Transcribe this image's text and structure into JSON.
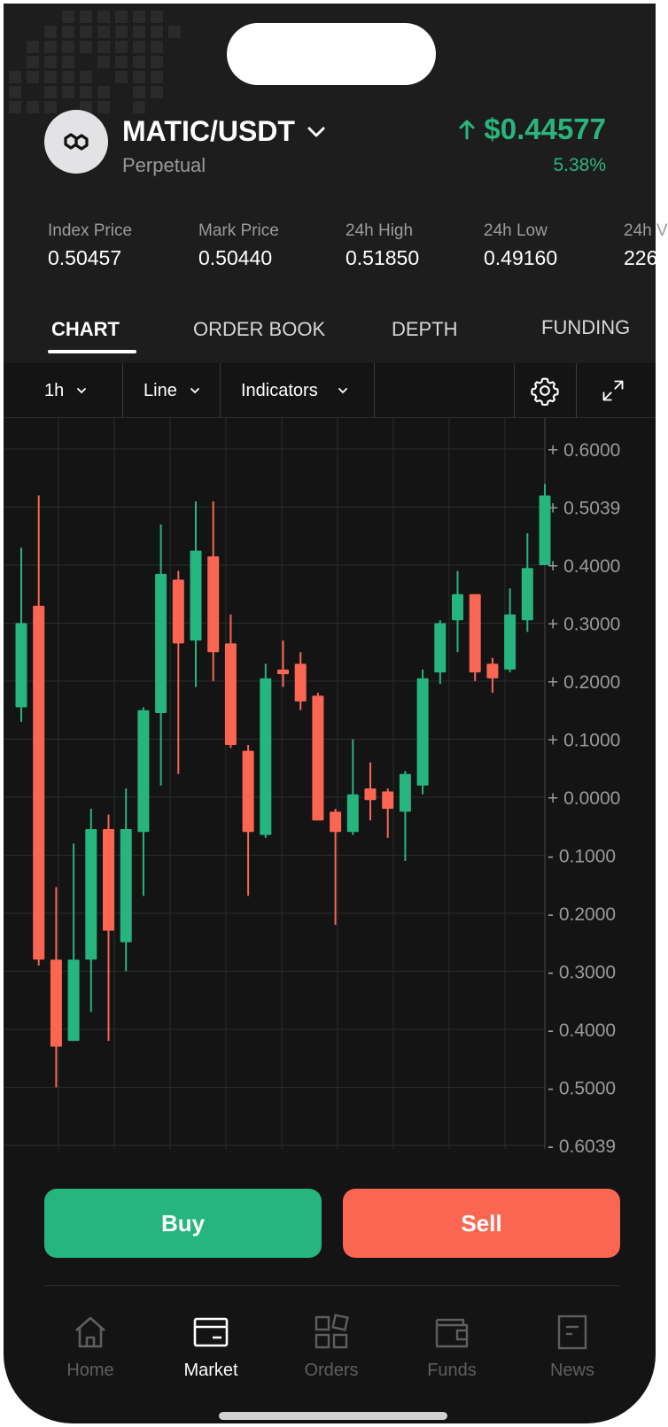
{
  "header": {
    "pair": "MATIC/USDT",
    "contract_type": "Perpetual",
    "price": "$0.44577",
    "change": "5.38%",
    "logo_icon": "polygon-logo-icon",
    "pair_dropdown_icon": "chevron-down-icon",
    "price_direction_icon": "arrow-up-icon"
  },
  "stats": [
    {
      "label": "Index Price",
      "value": "0.50457"
    },
    {
      "label": "Mark Price",
      "value": "0.50440"
    },
    {
      "label": "24h High",
      "value": "0.51850"
    },
    {
      "label": "24h Low",
      "value": "0.49160"
    },
    {
      "label": "24h V",
      "value": "226"
    }
  ],
  "tabs": [
    {
      "label": "CHART",
      "active": true
    },
    {
      "label": "ORDER BOOK",
      "active": false
    },
    {
      "label": "DEPTH",
      "active": false
    },
    {
      "label": "FUNDING",
      "active": false
    }
  ],
  "toolbar": {
    "interval": "1h",
    "chart_style": "Line",
    "indicators": "Indicators",
    "settings_icon": "gear-icon",
    "expand_icon": "expand-icon"
  },
  "chart_data": {
    "type": "candlestick",
    "price_axis_labels": [
      "+ 0.6000",
      "+ 0.5039",
      "+ 0.4000",
      "+ 0.3000",
      "+ 0.2000",
      "+ 0.1000",
      "+ 0.0000",
      "- 0.1000",
      "- 0.2000",
      "- 0.3000",
      "- 0.4000",
      "- 0.5000",
      "- 0.6039"
    ],
    "grid": true,
    "colors": {
      "up": "#26b57f",
      "down": "#fb6653"
    },
    "candles": [
      {
        "open": 0.155,
        "close": 0.3,
        "high": 0.43,
        "low": 0.13
      },
      {
        "open": 0.33,
        "close": -0.28,
        "high": 0.52,
        "low": -0.29
      },
      {
        "open": -0.28,
        "close": -0.43,
        "high": -0.155,
        "low": -0.5
      },
      {
        "open": -0.42,
        "close": -0.28,
        "high": -0.08,
        "low": -0.42
      },
      {
        "open": -0.28,
        "close": -0.055,
        "high": -0.02,
        "low": -0.37
      },
      {
        "open": -0.055,
        "close": -0.23,
        "high": -0.03,
        "low": -0.42
      },
      {
        "open": -0.25,
        "close": -0.055,
        "high": 0.015,
        "low": -0.3
      },
      {
        "open": -0.06,
        "close": 0.15,
        "high": 0.155,
        "low": -0.17
      },
      {
        "open": 0.145,
        "close": 0.385,
        "high": 0.47,
        "low": 0.02
      },
      {
        "open": 0.375,
        "close": 0.265,
        "high": 0.39,
        "low": 0.04
      },
      {
        "open": 0.27,
        "close": 0.425,
        "high": 0.51,
        "low": 0.19
      },
      {
        "open": 0.415,
        "close": 0.25,
        "high": 0.51,
        "low": 0.2
      },
      {
        "open": 0.265,
        "close": 0.09,
        "high": 0.315,
        "low": 0.085
      },
      {
        "open": 0.08,
        "close": -0.06,
        "high": 0.09,
        "low": -0.17
      },
      {
        "open": -0.065,
        "close": 0.205,
        "high": 0.23,
        "low": -0.07
      },
      {
        "open": 0.22,
        "close": 0.212,
        "high": 0.27,
        "low": 0.19
      },
      {
        "open": 0.23,
        "close": 0.165,
        "high": 0.25,
        "low": 0.15
      },
      {
        "open": 0.175,
        "close": -0.04,
        "high": 0.18,
        "low": -0.04
      },
      {
        "open": -0.025,
        "close": -0.06,
        "high": -0.02,
        "low": -0.22
      },
      {
        "open": -0.06,
        "close": 0.005,
        "high": 0.1,
        "low": -0.065
      },
      {
        "open": 0.015,
        "close": -0.005,
        "high": 0.06,
        "low": -0.04
      },
      {
        "open": 0.01,
        "close": -0.02,
        "high": 0.015,
        "low": -0.07
      },
      {
        "open": -0.025,
        "close": 0.04,
        "high": 0.045,
        "low": -0.11
      },
      {
        "open": 0.02,
        "close": 0.205,
        "high": 0.22,
        "low": 0.005
      },
      {
        "open": 0.215,
        "close": 0.3,
        "high": 0.305,
        "low": 0.195
      },
      {
        "open": 0.305,
        "close": 0.35,
        "high": 0.39,
        "low": 0.25
      },
      {
        "open": 0.35,
        "close": 0.215,
        "high": 0.35,
        "low": 0.2
      },
      {
        "open": 0.23,
        "close": 0.205,
        "high": 0.24,
        "low": 0.18
      },
      {
        "open": 0.22,
        "close": 0.315,
        "high": 0.36,
        "low": 0.215
      },
      {
        "open": 0.305,
        "close": 0.395,
        "high": 0.455,
        "low": 0.285
      },
      {
        "open": 0.4,
        "close": 0.52,
        "high": 0.54,
        "low": 0.4
      }
    ]
  },
  "actions": {
    "buy": "Buy",
    "sell": "Sell"
  },
  "nav": [
    {
      "label": "Home",
      "icon": "home-icon",
      "active": false
    },
    {
      "label": "Market",
      "icon": "market-icon",
      "active": true
    },
    {
      "label": "Orders",
      "icon": "orders-icon",
      "active": false
    },
    {
      "label": "Funds",
      "icon": "funds-icon",
      "active": false
    },
    {
      "label": "News",
      "icon": "news-icon",
      "active": false
    }
  ]
}
